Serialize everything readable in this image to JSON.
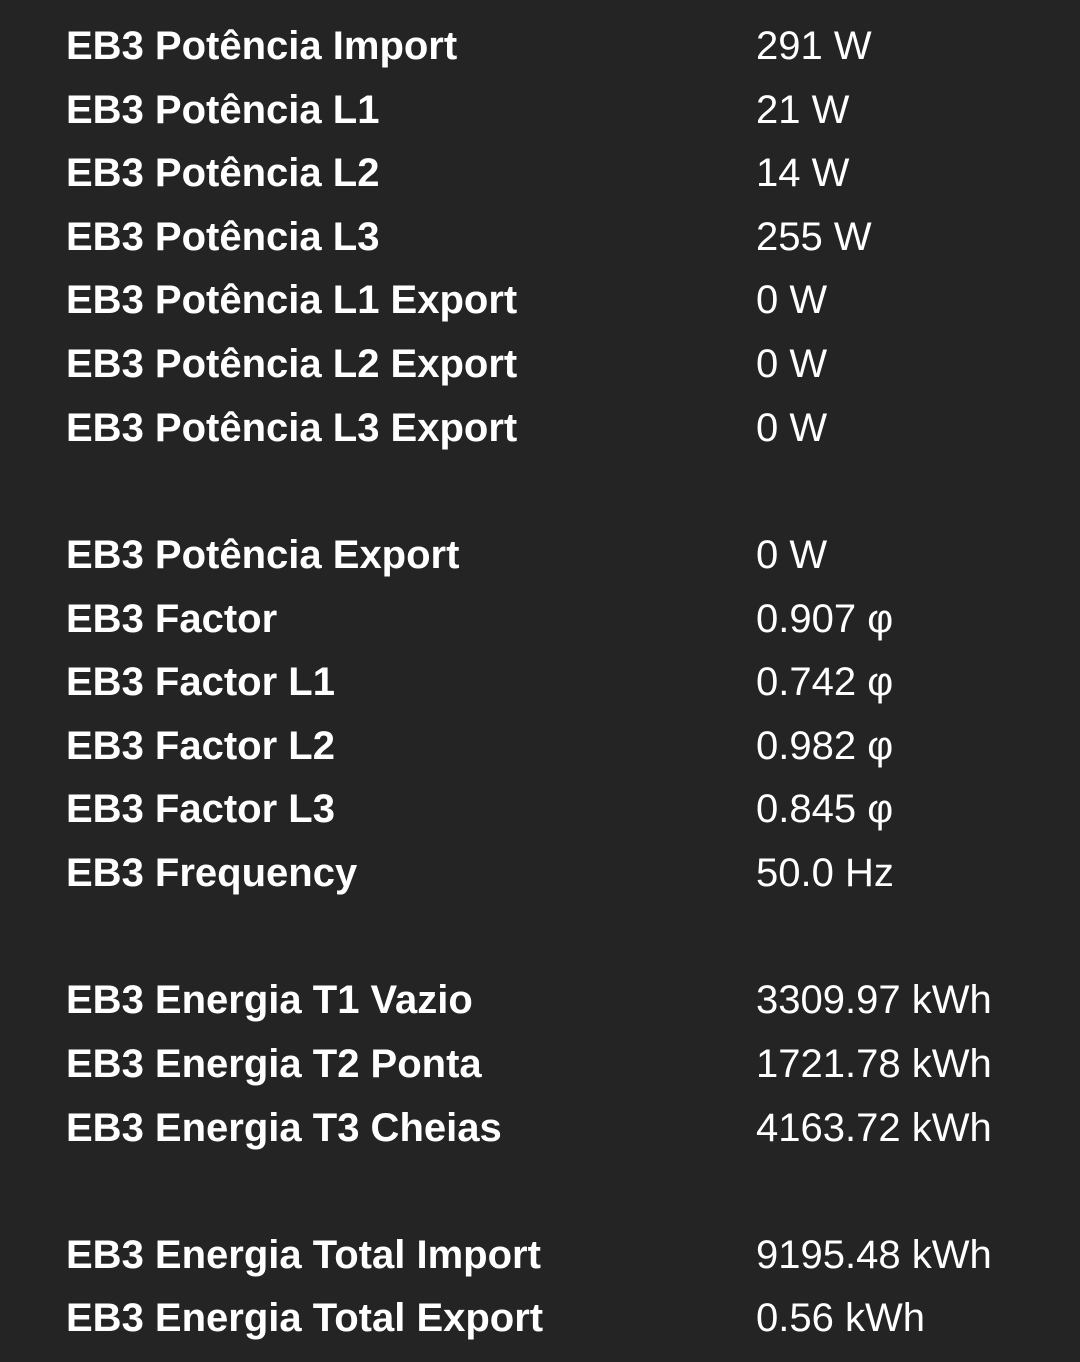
{
  "sensors": [
    {
      "label": "EB3 Potência Import",
      "value": "291 W"
    },
    {
      "label": "EB3 Potência L1",
      "value": "21 W"
    },
    {
      "label": "EB3 Potência L2",
      "value": "14 W"
    },
    {
      "label": "EB3 Potência L3",
      "value": "255 W"
    },
    {
      "label": "EB3 Potência L1 Export",
      "value": "0 W"
    },
    {
      "label": "EB3 Potência L2 Export",
      "value": "0 W"
    },
    {
      "label": "EB3 Potência L3 Export",
      "value": "0 W"
    },
    {
      "label": "EB3 Potência Export",
      "value": "0 W"
    },
    {
      "label": "EB3 Factor",
      "value": "0.907 φ"
    },
    {
      "label": "EB3 Factor L1",
      "value": "0.742 φ"
    },
    {
      "label": "EB3 Factor L2",
      "value": "0.982 φ"
    },
    {
      "label": "EB3 Factor L3",
      "value": "0.845 φ"
    },
    {
      "label": "EB3 Frequency",
      "value": "50.0 Hz"
    },
    {
      "label": "EB3 Energia T1 Vazio",
      "value": "3309.97 kWh"
    },
    {
      "label": "EB3 Energia T2 Ponta",
      "value": "1721.78 kWh"
    },
    {
      "label": "EB3 Energia T3 Cheias",
      "value": "4163.72 kWh"
    },
    {
      "label": "EB3 Energia Total Import",
      "value": "9195.48 kWh"
    },
    {
      "label": "EB3 Energia Total Export",
      "value": "0.56 kWh"
    }
  ],
  "colors": {
    "background": "#242424",
    "text": "#ffffff"
  }
}
